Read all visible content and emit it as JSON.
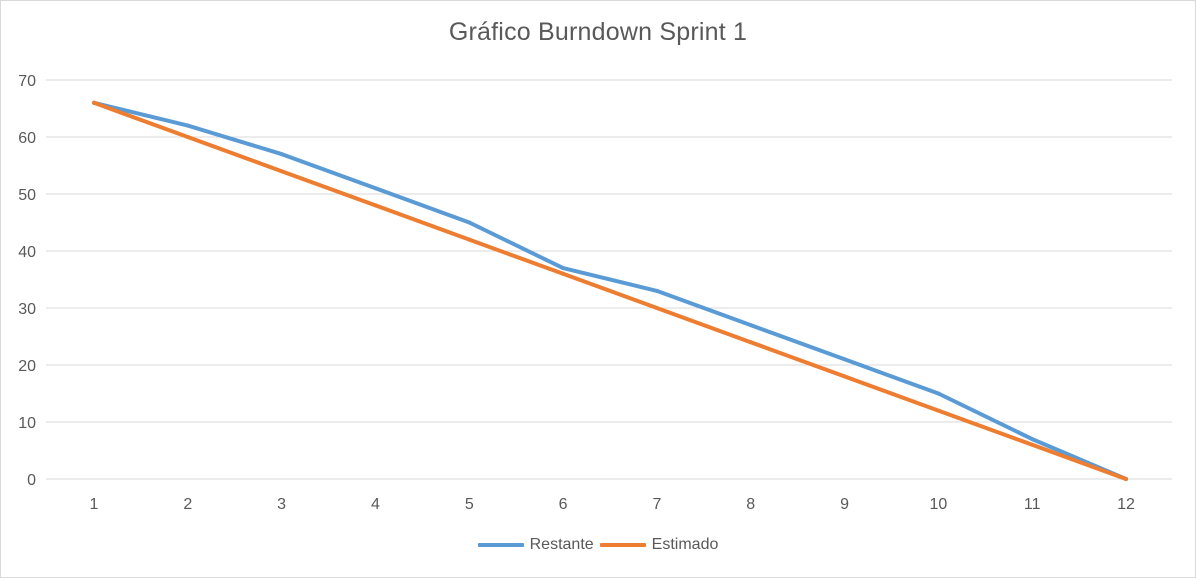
{
  "chart_data": {
    "type": "line",
    "title": "Gráfico Burndown Sprint 1",
    "xlabel": "",
    "ylabel": "",
    "x": [
      1,
      2,
      3,
      4,
      5,
      6,
      7,
      8,
      9,
      10,
      11,
      12
    ],
    "ylim": [
      0,
      70
    ],
    "yticks": [
      0,
      10,
      20,
      30,
      40,
      50,
      60,
      70
    ],
    "grid": true,
    "legend_position": "bottom",
    "series": [
      {
        "name": "Restante",
        "color": "#5b9bd5",
        "values": [
          66,
          62,
          57,
          51,
          45,
          37,
          33,
          27,
          21,
          15,
          7,
          0
        ]
      },
      {
        "name": "Estimado",
        "color": "#ed7d31",
        "values": [
          66,
          60,
          54,
          48,
          42,
          36,
          30,
          24,
          18,
          12,
          6,
          0
        ]
      }
    ]
  }
}
